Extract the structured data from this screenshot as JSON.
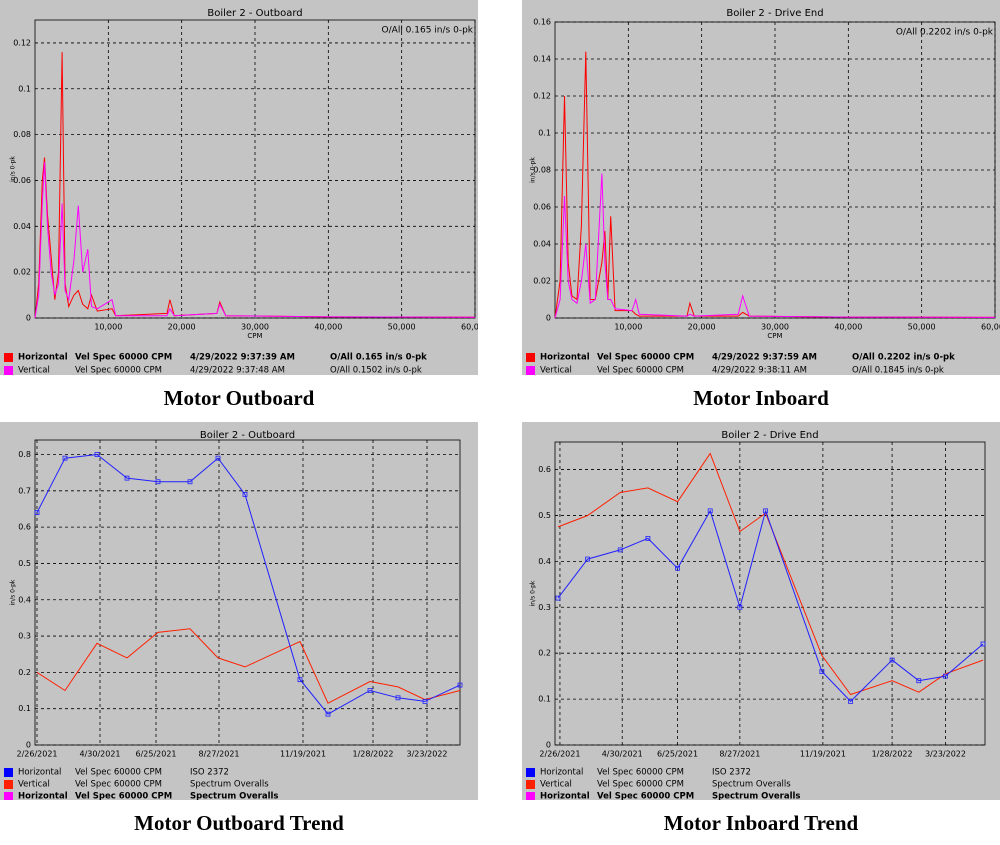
{
  "chart_data": [
    {
      "type": "line",
      "title": "Boiler 2 - Outboard",
      "annotation": "O/All 0.165 in/s 0-pk",
      "y_label": "in/s 0-pk",
      "x_label": "CPM",
      "grid": true,
      "xlim": [
        0,
        60000
      ],
      "ylim": [
        0,
        0.13
      ],
      "xticks": [
        {
          "value": 10000,
          "label": "10,000"
        },
        {
          "value": 20000,
          "label": "20,000"
        },
        {
          "value": 30000,
          "label": "30,000"
        },
        {
          "value": 40000,
          "label": "40,000"
        },
        {
          "value": 50000,
          "label": "50,000"
        },
        {
          "value": 60000,
          "label": "60,000"
        }
      ],
      "yticks": [
        0,
        0.02,
        0.04,
        0.06,
        0.08,
        0.1,
        0.12
      ],
      "x": [
        0,
        500,
        1000,
        1300,
        1700,
        2200,
        2700,
        3200,
        3700,
        4100,
        4600,
        5300,
        5900,
        6500,
        7200,
        7700,
        8500,
        10500,
        11000,
        18000,
        18400,
        19000,
        24800,
        25200,
        26000,
        40000,
        60000
      ],
      "series": [
        {
          "color": "#ff0000",
          "values": [
            0,
            0.015,
            0.06,
            0.07,
            0.045,
            0.027,
            0.008,
            0.02,
            0.116,
            0.015,
            0.005,
            0.01,
            0.012,
            0.006,
            0.004,
            0.01,
            0.003,
            0.004,
            0.001,
            0.002,
            0.008,
            0.001,
            0.002,
            0.007,
            0.001,
            0.0005,
            0.0003
          ]
        },
        {
          "color": "#ff00ff",
          "values": [
            0,
            0.01,
            0.05,
            0.068,
            0.04,
            0.02,
            0.01,
            0.015,
            0.05,
            0.012,
            0.008,
            0.025,
            0.049,
            0.02,
            0.03,
            0.005,
            0.004,
            0.008,
            0.001,
            0.001,
            0.004,
            0.001,
            0.002,
            0.006,
            0.001,
            0.0005,
            0.0003
          ]
        }
      ],
      "legend": [
        {
          "color": "#ff0000",
          "bold": true,
          "cells": [
            "Horizontal",
            "Vel Spec 60000 CPM",
            "4/29/2022 9:37:39 AM",
            "O/All 0.165 in/s 0-pk"
          ]
        },
        {
          "color": "#ff00ff",
          "bold": false,
          "cells": [
            "Vertical",
            "Vel Spec 60000 CPM",
            "4/29/2022 9:37:48 AM",
            "O/All 0.1502 in/s 0-pk"
          ]
        }
      ]
    },
    {
      "type": "line",
      "title": "Boiler 2 - Drive End",
      "annotation": "O/All 0.2202 in/s 0-pk",
      "y_label": "in/s 0-pk",
      "x_label": "CPM",
      "grid": true,
      "xlim": [
        0,
        60000
      ],
      "ylim": [
        0,
        0.16
      ],
      "xticks": [
        {
          "value": 10000,
          "label": "10,000"
        },
        {
          "value": 20000,
          "label": "20,000"
        },
        {
          "value": 30000,
          "label": "30,000"
        },
        {
          "value": 40000,
          "label": "40,000"
        },
        {
          "value": 50000,
          "label": "50,000"
        },
        {
          "value": 60000,
          "label": "60,000"
        }
      ],
      "yticks": [
        0,
        0.02,
        0.04,
        0.06,
        0.08,
        0.1,
        0.12,
        0.14,
        0.16
      ],
      "x": [
        0,
        700,
        1300,
        1800,
        2300,
        3000,
        3600,
        4200,
        4800,
        5500,
        6400,
        6800,
        7200,
        7600,
        8200,
        10500,
        11000,
        11500,
        18000,
        18400,
        19000,
        25000,
        25600,
        26500,
        40000,
        60000
      ],
      "series": [
        {
          "color": "#ff0000",
          "values": [
            0,
            0.02,
            0.12,
            0.03,
            0.012,
            0.01,
            0.05,
            0.144,
            0.01,
            0.01,
            0.03,
            0.047,
            0.01,
            0.055,
            0.004,
            0.004,
            0.002,
            0.001,
            0.001,
            0.008,
            0.001,
            0.001,
            0.003,
            0.001,
            0.0005,
            0.0003
          ]
        },
        {
          "color": "#ff00ff",
          "values": [
            0,
            0.01,
            0.066,
            0.02,
            0.01,
            0.008,
            0.02,
            0.04,
            0.008,
            0.01,
            0.078,
            0.03,
            0.01,
            0.01,
            0.005,
            0.004,
            0.01,
            0.002,
            0.001,
            0.002,
            0.001,
            0.002,
            0.012,
            0.001,
            0.0005,
            0.0003
          ]
        }
      ],
      "legend": [
        {
          "color": "#ff0000",
          "bold": true,
          "cells": [
            "Horizontal",
            "Vel Spec 60000 CPM",
            "4/29/2022 9:37:59 AM",
            "O/All 0.2202 in/s 0-pk"
          ]
        },
        {
          "color": "#ff00ff",
          "bold": false,
          "cells": [
            "Vertical",
            "Vel Spec 60000 CPM",
            "4/29/2022 9:38:11 AM",
            "O/All 0.1845 in/s 0-pk"
          ]
        }
      ]
    },
    {
      "type": "line",
      "xscale": "time",
      "title": "Boiler 2 - Outboard",
      "y_label": "in/s 0-pk",
      "grid": true,
      "xlim": [
        "2/24/2021",
        "4/25/2022"
      ],
      "ylim": [
        0,
        0.84
      ],
      "xticks": [
        "2/26/2021",
        "4/30/2021",
        "6/25/2021",
        "8/27/2021",
        "11/19/2021",
        "1/28/2022",
        "3/23/2022"
      ],
      "yticks": [
        0,
        0.1,
        0.2,
        0.3,
        0.4,
        0.5,
        0.6,
        0.7,
        0.8
      ],
      "x": [
        "2/26/2021",
        "3/26/2021",
        "4/27/2021",
        "5/27/2021",
        "6/27/2021",
        "7/29/2021",
        "8/26/2021",
        "9/22/2021",
        "11/16/2021",
        "12/14/2021",
        "1/25/2022",
        "2/22/2022",
        "3/21/2022",
        "4/25/2022"
      ],
      "series": [
        {
          "color": "#ff2000",
          "values": [
            0.2,
            0.15,
            0.28,
            0.24,
            0.31,
            0.32,
            0.24,
            0.215,
            0.285,
            0.115,
            0.175,
            0.16,
            0.125,
            0.15
          ]
        },
        {
          "color": "#2020ff",
          "marker": "square",
          "values": [
            0.64,
            0.79,
            0.8,
            0.735,
            0.725,
            0.725,
            0.79,
            0.69,
            0.18,
            0.085,
            0.15,
            0.13,
            0.12,
            0.165
          ]
        }
      ],
      "legend": [
        {
          "color": "#0000ff",
          "bold": false,
          "cells": [
            "Horizontal",
            "Vel Spec 60000 CPM",
            "ISO 2372"
          ]
        },
        {
          "color": "#ff2000",
          "bold": false,
          "cells": [
            "Vertical",
            "Vel Spec 60000 CPM",
            "Spectrum Overalls"
          ]
        },
        {
          "color": "#ff00ff",
          "bold": true,
          "cells": [
            "Horizontal",
            "Vel Spec 60000 CPM",
            "Spectrum Overalls"
          ]
        }
      ]
    },
    {
      "type": "line",
      "xscale": "time",
      "title": "Boiler 2 - Drive End",
      "y_label": "in/s 0-pk",
      "grid": true,
      "xlim": [
        "2/21/2021",
        "5/2/2022"
      ],
      "ylim": [
        0,
        0.66
      ],
      "xticks": [
        "2/26/2021",
        "4/30/2021",
        "6/25/2021",
        "8/27/2021",
        "11/19/2021",
        "1/28/2022",
        "3/23/2022"
      ],
      "yticks": [
        0,
        0.1,
        0.2,
        0.3,
        0.4,
        0.5,
        0.6
      ],
      "x": [
        "2/24/2021",
        "3/26/2021",
        "4/28/2021",
        "5/26/2021",
        "6/25/2021",
        "7/28/2021",
        "8/27/2021",
        "9/22/2021",
        "11/18/2021",
        "12/17/2021",
        "1/28/2022",
        "2/24/2022",
        "3/23/2022",
        "4/30/2022"
      ],
      "series": [
        {
          "color": "#ff2000",
          "values": [
            0.475,
            0.5,
            0.55,
            0.56,
            0.53,
            0.635,
            0.465,
            0.505,
            0.195,
            0.11,
            0.14,
            0.115,
            0.155,
            0.185
          ]
        },
        {
          "color": "#2020ff",
          "marker": "square",
          "values": [
            0.32,
            0.405,
            0.425,
            0.45,
            0.385,
            0.51,
            0.3,
            0.51,
            0.16,
            0.095,
            0.185,
            0.14,
            0.15,
            0.22
          ]
        }
      ],
      "legend": [
        {
          "color": "#0000ff",
          "bold": false,
          "cells": [
            "Horizontal",
            "Vel Spec 60000 CPM",
            "ISO 2372"
          ]
        },
        {
          "color": "#ff2000",
          "bold": false,
          "cells": [
            "Vertical",
            "Vel Spec 60000 CPM",
            "Spectrum Overalls"
          ]
        },
        {
          "color": "#ff00ff",
          "bold": true,
          "cells": [
            "Horizontal",
            "Vel Spec 60000 CPM",
            "Spectrum Overalls"
          ]
        }
      ]
    }
  ],
  "captions": [
    "Motor Outboard",
    "Motor Inboard",
    "Motor Outboard Trend",
    "Motor Inboard Trend"
  ]
}
